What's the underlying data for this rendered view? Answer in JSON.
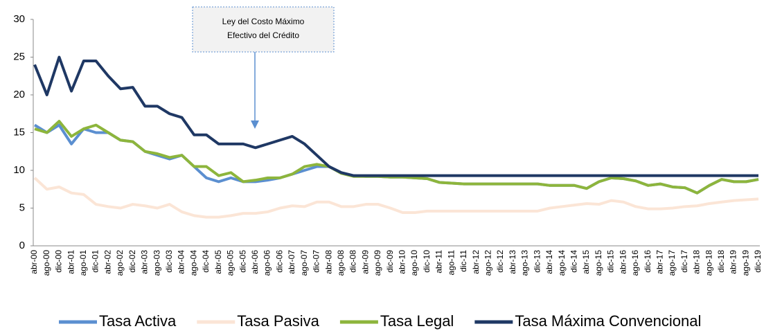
{
  "chart_data": {
    "type": "line",
    "annotation": [
      "Ley del Costo Máximo",
      "Efectivo del Crédito"
    ],
    "categories": [
      "abr-00",
      "ago-00",
      "dic-00",
      "abr-01",
      "ago-01",
      "dic-01",
      "abr-02",
      "ago-02",
      "dic-02",
      "abr-03",
      "ago-03",
      "dic-03",
      "abr-04",
      "ago-04",
      "dic-04",
      "abr-05",
      "ago-05",
      "dic-05",
      "abr-06",
      "ago-06",
      "dic-06",
      "abr-07",
      "ago-07",
      "dic-07",
      "abr-08",
      "ago-08",
      "dic-08",
      "abr-09",
      "ago-09",
      "dic-09",
      "abr-10",
      "ago-10",
      "dic-10",
      "abr-11",
      "ago-11",
      "dic-11",
      "abr-12",
      "ago-12",
      "dic-12",
      "abr-13",
      "ago-13",
      "dic-13",
      "abr-14",
      "ago-14",
      "dic-14",
      "abr-15",
      "ago-15",
      "dic-15",
      "abr-16",
      "ago-16",
      "dic-16",
      "abr-17",
      "ago-17",
      "dic-17",
      "abr-18",
      "ago-18",
      "dic-18",
      "abr-19",
      "ago-19",
      "dic-19"
    ],
    "series": [
      {
        "name": "Tasa Activa",
        "color": "#5b8fd0",
        "values": [
          16,
          15,
          16,
          13.5,
          15.5,
          15,
          15,
          14,
          13.8,
          12.5,
          12,
          11.5,
          12,
          10.5,
          9,
          8.5,
          9,
          8.5,
          8.5,
          8.7,
          9,
          9.5,
          10,
          10.5,
          10.5,
          9.7,
          9.3,
          9.2,
          9.2,
          9.1,
          9.1,
          9,
          8.9,
          8.4,
          8.3,
          8.2,
          8.2,
          8.2,
          8.2,
          8.2,
          8.2,
          8.2,
          8,
          8,
          8,
          7.6,
          8.5,
          9,
          8.9,
          8.6,
          8,
          8.2,
          7.8,
          7.7,
          7,
          8,
          8.8,
          8.5,
          8.5,
          8.8
        ]
      },
      {
        "name": "Tasa Pasiva",
        "color": "#fbe5d6",
        "values": [
          9,
          7.5,
          7.8,
          7,
          6.8,
          5.5,
          5.2,
          5,
          5.5,
          5.3,
          5,
          5.5,
          4.5,
          4,
          3.8,
          3.8,
          4,
          4.3,
          4.3,
          4.5,
          5,
          5.3,
          5.2,
          5.8,
          5.8,
          5.2,
          5.2,
          5.5,
          5.5,
          5,
          4.4,
          4.4,
          4.6,
          4.6,
          4.6,
          4.6,
          4.6,
          4.6,
          4.6,
          4.6,
          4.6,
          4.6,
          5,
          5.2,
          5.4,
          5.6,
          5.5,
          6,
          5.8,
          5.2,
          4.9,
          4.9,
          5,
          5.2,
          5.3,
          5.6,
          5.8,
          6,
          6.1,
          6.2
        ]
      },
      {
        "name": "Tasa Legal",
        "color": "#8db53c",
        "values": [
          15.5,
          15,
          16.5,
          14.5,
          15.5,
          16,
          15,
          14,
          13.8,
          12.5,
          12.2,
          11.7,
          12,
          10.5,
          10.5,
          9.3,
          9.7,
          8.5,
          8.7,
          9,
          9,
          9.5,
          10.5,
          10.8,
          10.5,
          9.6,
          9.2,
          9.2,
          9.2,
          9.1,
          9.1,
          9,
          8.9,
          8.4,
          8.3,
          8.2,
          8.2,
          8.2,
          8.2,
          8.2,
          8.2,
          8.2,
          8,
          8,
          8,
          7.6,
          8.5,
          9,
          8.9,
          8.6,
          8,
          8.2,
          7.8,
          7.7,
          7,
          8,
          8.8,
          8.5,
          8.5,
          8.8
        ]
      },
      {
        "name": "Tasa Máxima Convencional",
        "color": "#1f3864",
        "values": [
          24,
          20,
          25,
          20.5,
          24.5,
          24.5,
          22.5,
          20.8,
          21,
          18.5,
          18.5,
          17.5,
          17,
          14.7,
          14.7,
          13.5,
          13.5,
          13.5,
          13,
          13.5,
          14,
          14.5,
          13.5,
          12,
          10.5,
          9.7,
          9.3,
          9.3,
          9.3,
          9.3,
          9.3,
          9.3,
          9.3,
          9.3,
          9.3,
          9.3,
          9.3,
          9.3,
          9.3,
          9.3,
          9.3,
          9.3,
          9.3,
          9.3,
          9.3,
          9.3,
          9.3,
          9.3,
          9.3,
          9.3,
          9.3,
          9.3,
          9.3,
          9.3,
          9.3,
          9.3,
          9.3,
          9.3,
          9.3,
          9.3
        ]
      }
    ],
    "ylim": [
      0,
      30
    ],
    "yticks": [
      0,
      5,
      10,
      15,
      20,
      25,
      30
    ],
    "grid": false,
    "legend": "bottom"
  }
}
